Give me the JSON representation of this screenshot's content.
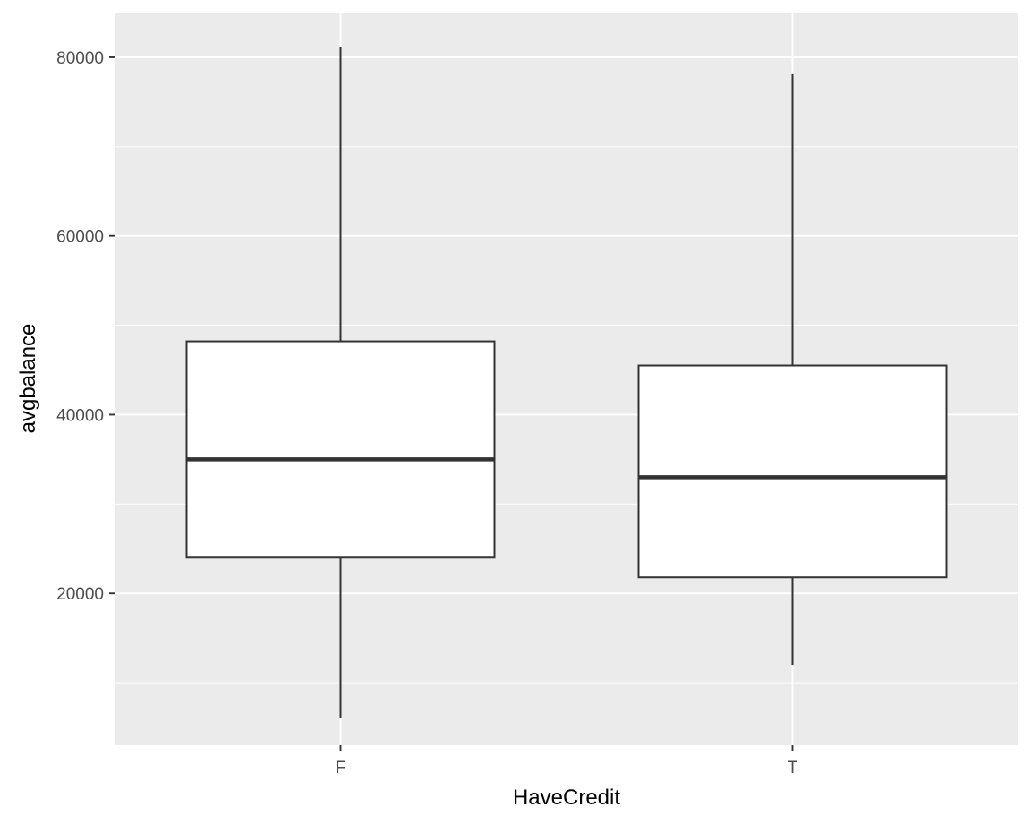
{
  "chart_data": {
    "type": "boxplot",
    "title": "",
    "xlabel": "HaveCredit",
    "ylabel": "avgbalance",
    "categories": [
      "F",
      "T"
    ],
    "boxes": [
      {
        "category": "F",
        "min": 6000,
        "q1": 24000,
        "median": 35000,
        "q3": 48200,
        "max": 81200
      },
      {
        "category": "T",
        "min": 12000,
        "q1": 21800,
        "median": 33000,
        "q3": 45500,
        "max": 78100
      }
    ],
    "ylim": [
      3000,
      85000
    ],
    "y_ticks": [
      20000,
      40000,
      60000,
      80000
    ],
    "y_tick_labels": [
      "20000",
      "40000",
      "60000",
      "80000"
    ],
    "grid": true,
    "colors": {
      "panel_background": "#ebebeb",
      "grid_line": "#ffffff",
      "box_fill": "#ffffff",
      "box_stroke": "#333333",
      "tick_mark": "#333333",
      "tick_label": "#4d4d4d",
      "axis_title": "#000000"
    }
  }
}
